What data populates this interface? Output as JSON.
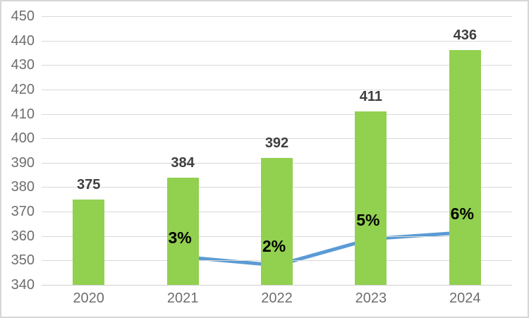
{
  "chart_data": {
    "type": "combo",
    "title": "",
    "subtitle": "",
    "legend": "none",
    "grid": true,
    "categories": [
      "2020",
      "2021",
      "2022",
      "2023",
      "2024"
    ],
    "series": [
      {
        "name": "values-bars",
        "type": "bar",
        "values": [
          375,
          384,
          392,
          411,
          436
        ],
        "data_labels": [
          "375",
          "384",
          "392",
          "411",
          "436"
        ],
        "color": "#92D050"
      },
      {
        "name": "growth-line",
        "type": "line",
        "color": "#5B9BD5",
        "points": [
          {
            "category": "2021",
            "label": "3%",
            "value_on_primary_axis": 351.5
          },
          {
            "category": "2022",
            "label": "2%",
            "value_on_primary_axis": 348.0
          },
          {
            "category": "2023",
            "label": "5%",
            "value_on_primary_axis": 358.8
          },
          {
            "category": "2024",
            "label": "6%",
            "value_on_primary_axis": 361.5
          }
        ]
      }
    ],
    "y_axis": {
      "min": 340,
      "max": 450,
      "step": 10,
      "tick_labels": [
        "340",
        "350",
        "360",
        "370",
        "380",
        "390",
        "400",
        "410",
        "420",
        "430",
        "440",
        "450"
      ]
    },
    "x_axis": {
      "tick_labels": [
        "2020",
        "2021",
        "2022",
        "2023",
        "2024"
      ]
    },
    "colors": {
      "bar": "#92D050",
      "line": "#5B9BD5",
      "axis_text": "#6E6E6E",
      "bar_label_text": "#3F3F3F",
      "line_label_text": "#000000",
      "gridline": "#D9D9D9",
      "axis_line": "#CFCFCF",
      "frame_border": "#D6D6D6"
    }
  }
}
